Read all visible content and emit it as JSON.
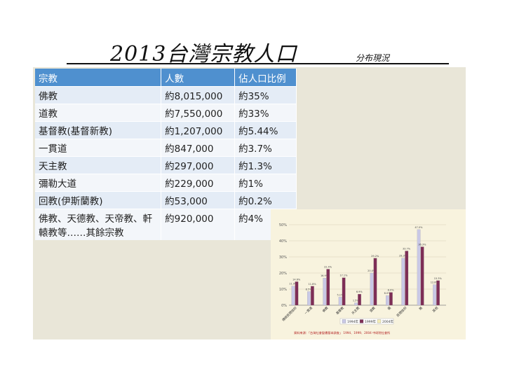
{
  "title": {
    "main": "2013台灣宗教人口",
    "sub": "分布現況"
  },
  "table": {
    "headers": [
      "宗教",
      "人數",
      "佔人口比例"
    ],
    "rows": [
      [
        "佛教",
        "約8,015,000",
        "約35%"
      ],
      [
        "道教",
        "約7,550,000",
        "約33%"
      ],
      [
        "基督教(基督新教)",
        "約1,207,000",
        "約5.44%"
      ],
      [
        "一貫道",
        "約847,000",
        "約3.7%"
      ],
      [
        "天主教",
        "約297,000",
        "約1.3%"
      ],
      [
        "彌勒大道",
        "約229,000",
        "約1%"
      ],
      [
        "回教(伊斯蘭教)",
        "約53,000",
        "約0.2%"
      ],
      [
        "佛教、天德教、天帝教、軒轅教等……其餘宗教",
        "約920,000",
        "約4%"
      ]
    ]
  },
  "chart_data": {
    "type": "bar",
    "categories": [
      "傳統民間信仰",
      "一貫道",
      "佛教",
      "基督教",
      "天主教",
      "道教",
      "儒",
      "民間信仰",
      "無",
      "其他"
    ],
    "ylim": [
      0,
      50
    ],
    "yticks": [
      "0%",
      "10%",
      "20%",
      "30%",
      "40%",
      "50%"
    ],
    "series": [
      {
        "name": "1994年",
        "color": "#c9c8e6",
        "values": [
          11.9,
          8.5,
          16.9,
          5.1,
          1.5,
          20.0,
          6.0,
          29.3,
          47.0,
          12.8
        ]
      },
      {
        "name": "1999年",
        "color": "#7e2e56",
        "values": [
          14.6,
          11.8,
          22.4,
          17.1,
          6.9,
          29.2,
          8.0,
          33.7,
          36.3,
          15.3
        ]
      },
      {
        "name": "2004年",
        "color": "#f4edb5",
        "values": [
          0,
          0,
          0,
          0,
          0,
          0,
          0,
          0,
          0,
          0
        ]
      }
    ],
    "note": "資料來源：「台灣社會變遷基本調查」 1994、1999、2004 中研院社會所"
  }
}
